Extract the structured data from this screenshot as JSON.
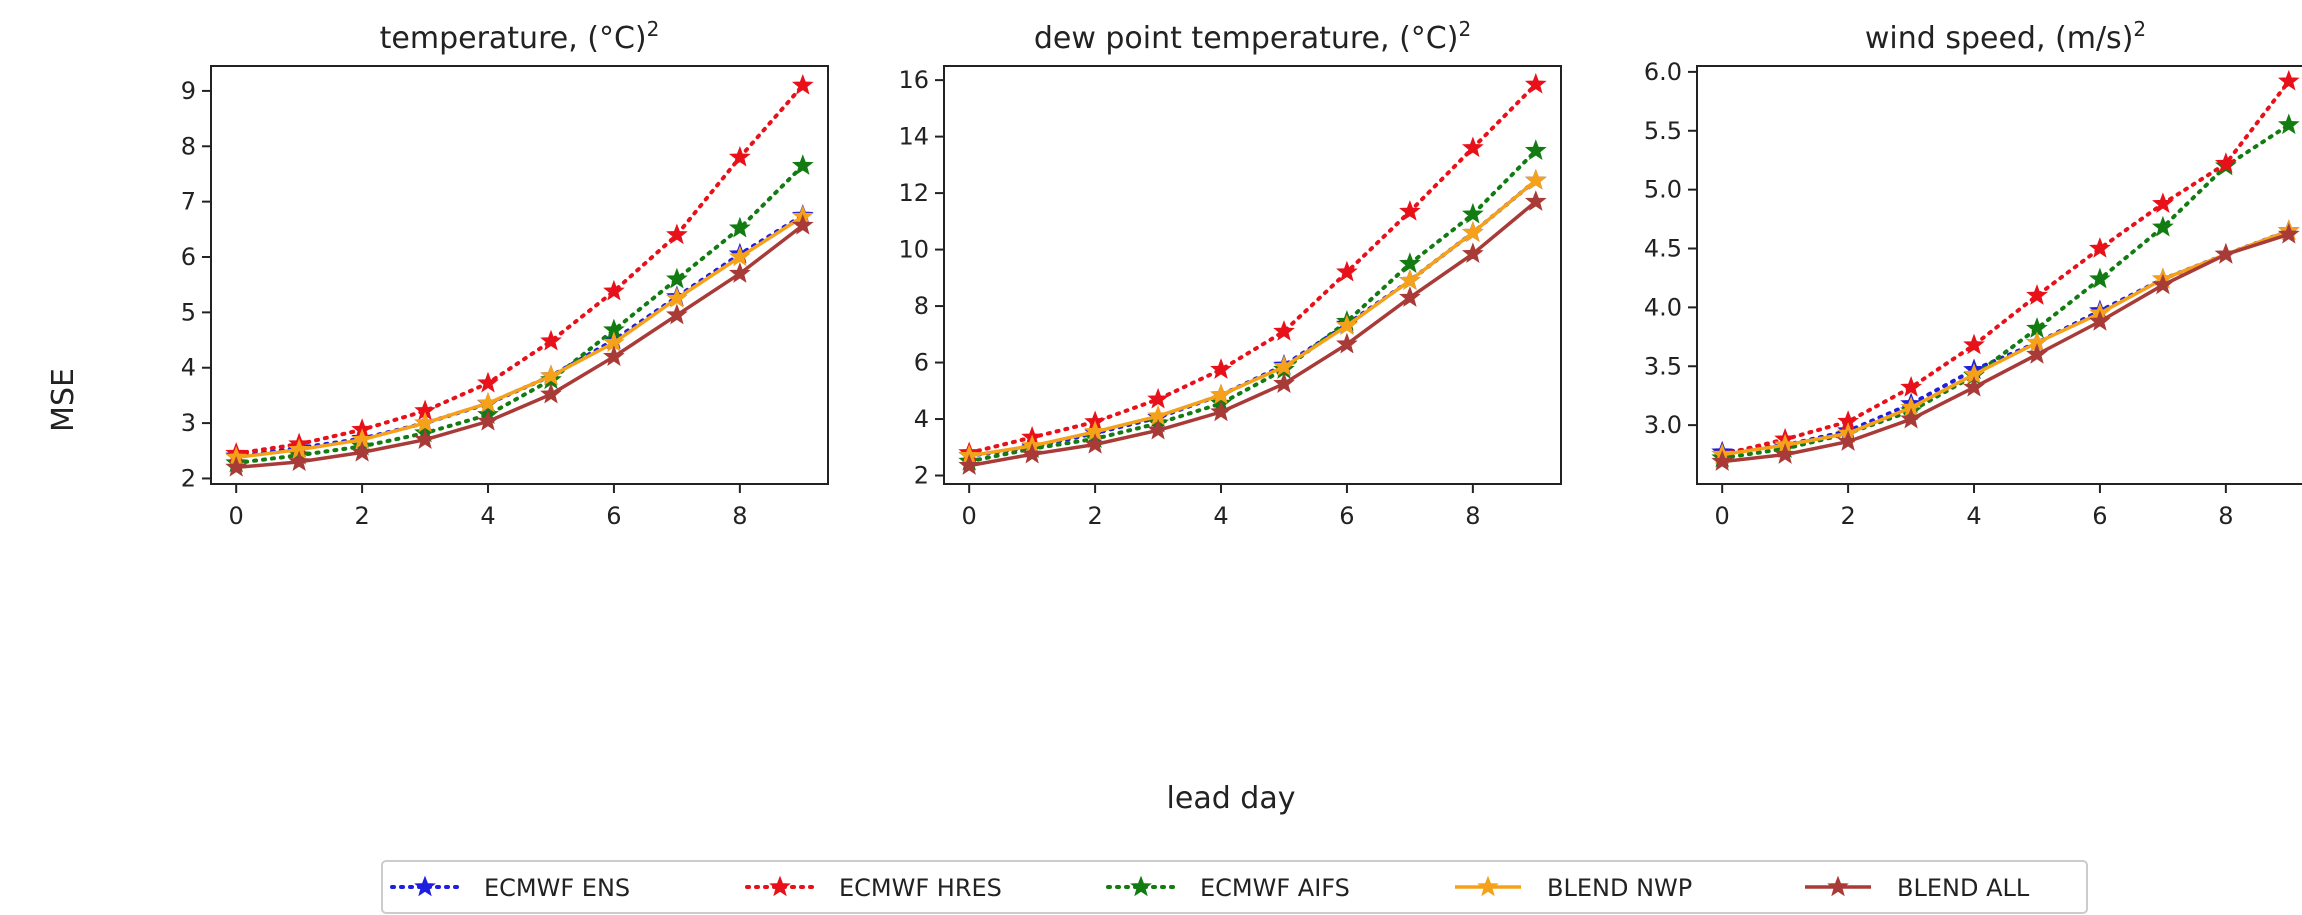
{
  "figure": {
    "ylabel": "MSE",
    "xlabel": "lead day"
  },
  "legend": {
    "position": "bottom-center",
    "entries": [
      "ECMWF ENS",
      "ECMWF HRES",
      "ECMWF AIFS",
      "BLEND NWP",
      "BLEND ALL"
    ]
  },
  "colors": {
    "ECMWF ENS": "#1f1fe0",
    "ECMWF HRES": "#e8111a",
    "ECMWF AIFS": "#127c12",
    "BLEND NWP": "#f5a21a",
    "BLEND ALL": "#a83a38"
  },
  "chart_data": [
    {
      "type": "line",
      "title": "temperature, (°C)",
      "title_superscript": "2",
      "x": [
        0,
        1,
        2,
        3,
        4,
        5,
        6,
        7,
        8,
        9
      ],
      "xticks": [
        "0",
        "2",
        "4",
        "6",
        "8"
      ],
      "yticks": [
        "2",
        "3",
        "4",
        "5",
        "6",
        "7",
        "8",
        "9"
      ],
      "ylim": [
        1.9,
        9.45
      ],
      "xlim": [
        -0.4,
        9.4
      ],
      "grid": false,
      "series": [
        {
          "name": "ECMWF ENS",
          "style": "dotted",
          "values": [
            2.4,
            2.55,
            2.72,
            3.0,
            3.35,
            3.85,
            4.5,
            5.28,
            6.05,
            6.75
          ]
        },
        {
          "name": "ECMWF HRES",
          "style": "dotted",
          "values": [
            2.45,
            2.62,
            2.88,
            3.22,
            3.72,
            4.48,
            5.38,
            6.4,
            7.8,
            9.1
          ]
        },
        {
          "name": "ECMWF AIFS",
          "style": "dotted",
          "values": [
            2.28,
            2.42,
            2.58,
            2.82,
            3.15,
            3.78,
            4.68,
            5.6,
            6.52,
            7.65
          ]
        },
        {
          "name": "BLEND NWP",
          "style": "solid",
          "values": [
            2.38,
            2.52,
            2.7,
            3.0,
            3.36,
            3.85,
            4.45,
            5.25,
            6.0,
            6.73
          ]
        },
        {
          "name": "BLEND ALL",
          "style": "solid",
          "values": [
            2.2,
            2.3,
            2.47,
            2.7,
            3.03,
            3.52,
            4.2,
            4.95,
            5.7,
            6.57
          ]
        }
      ]
    },
    {
      "type": "line",
      "title": "dew point temperature, (°C)",
      "title_superscript": "2",
      "x": [
        0,
        1,
        2,
        3,
        4,
        5,
        6,
        7,
        8,
        9
      ],
      "xticks": [
        "0",
        "2",
        "4",
        "6",
        "8"
      ],
      "yticks": [
        "2",
        "4",
        "6",
        "8",
        "10",
        "12",
        "14",
        "16"
      ],
      "ylim": [
        1.7,
        16.5
      ],
      "xlim": [
        -0.4,
        9.4
      ],
      "grid": false,
      "series": [
        {
          "name": "ECMWF ENS",
          "style": "dotted",
          "values": [
            2.7,
            3.0,
            3.5,
            4.05,
            4.85,
            5.9,
            7.35,
            8.9,
            10.6,
            12.45
          ]
        },
        {
          "name": "ECMWF HRES",
          "style": "dotted",
          "values": [
            2.8,
            3.35,
            3.9,
            4.7,
            5.75,
            7.1,
            9.2,
            11.35,
            13.6,
            15.85
          ]
        },
        {
          "name": "ECMWF AIFS",
          "style": "dotted",
          "values": [
            2.5,
            2.95,
            3.3,
            3.85,
            4.55,
            5.75,
            7.45,
            9.5,
            11.25,
            13.5
          ]
        },
        {
          "name": "BLEND NWP",
          "style": "solid",
          "values": [
            2.7,
            3.05,
            3.55,
            4.1,
            4.85,
            5.85,
            7.3,
            8.9,
            10.6,
            12.45
          ]
        },
        {
          "name": "BLEND ALL",
          "style": "solid",
          "values": [
            2.35,
            2.75,
            3.1,
            3.6,
            4.25,
            5.25,
            6.65,
            8.3,
            9.85,
            11.7
          ]
        }
      ]
    },
    {
      "type": "line",
      "title": "wind speed, (m/s)",
      "title_superscript": "2",
      "x": [
        0,
        1,
        2,
        3,
        4,
        5,
        6,
        7,
        8,
        9
      ],
      "xticks": [
        "0",
        "2",
        "4",
        "6",
        "8"
      ],
      "yticks": [
        "3.0",
        "3.5",
        "4.0",
        "4.5",
        "5.0",
        "5.5",
        "6.0"
      ],
      "ylim": [
        2.5,
        6.05
      ],
      "xlim": [
        -0.4,
        9.4
      ],
      "grid": false,
      "series": [
        {
          "name": "ECMWF ENS",
          "style": "dotted",
          "values": [
            2.77,
            2.83,
            2.95,
            3.18,
            3.47,
            3.7,
            3.97,
            4.24,
            4.45,
            4.65
          ]
        },
        {
          "name": "ECMWF HRES",
          "style": "dotted",
          "values": [
            2.75,
            2.88,
            3.03,
            3.32,
            3.68,
            4.1,
            4.5,
            4.88,
            5.22,
            5.92
          ]
        },
        {
          "name": "ECMWF AIFS",
          "style": "dotted",
          "values": [
            2.72,
            2.8,
            2.93,
            3.12,
            3.42,
            3.82,
            4.24,
            4.68,
            5.2,
            5.55
          ]
        },
        {
          "name": "BLEND NWP",
          "style": "solid",
          "values": [
            2.75,
            2.83,
            2.93,
            3.15,
            3.43,
            3.7,
            3.95,
            4.24,
            4.45,
            4.65
          ]
        },
        {
          "name": "BLEND ALL",
          "style": "solid",
          "values": [
            2.69,
            2.75,
            2.86,
            3.05,
            3.32,
            3.6,
            3.88,
            4.19,
            4.45,
            4.62
          ]
        }
      ]
    }
  ]
}
